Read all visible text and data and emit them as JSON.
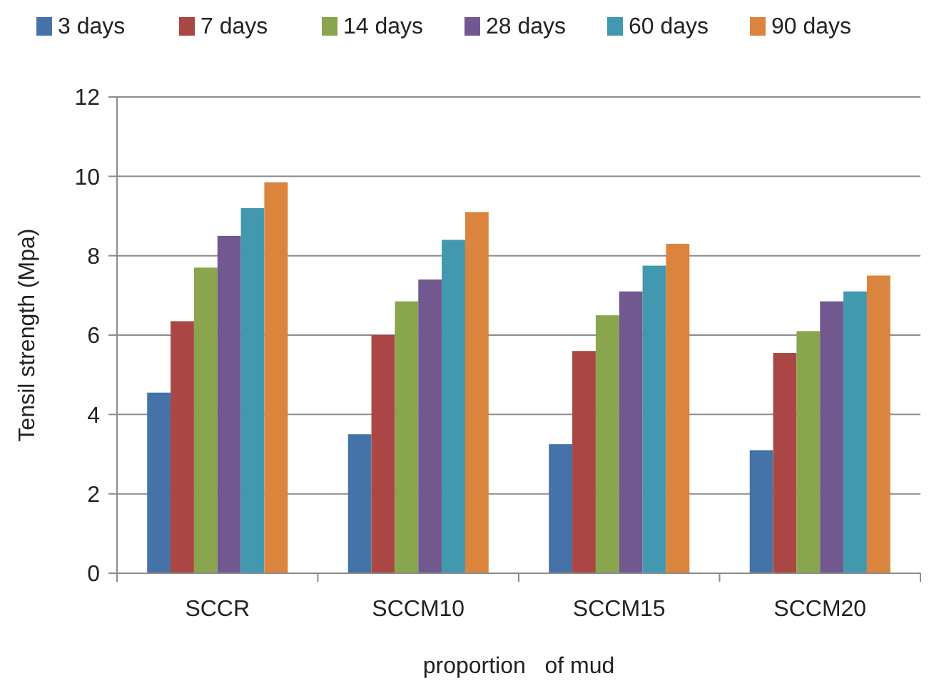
{
  "chart_data": {
    "type": "bar",
    "xlabel": "proportion   of mud",
    "ylabel": "Tensil strength (Mpa)",
    "categories": [
      "SCCR",
      "SCCM10",
      "SCCM15",
      "SCCM20"
    ],
    "series": [
      {
        "name": "3 days",
        "color": "#4572a7",
        "values": [
          4.55,
          3.5,
          3.25,
          3.1
        ]
      },
      {
        "name": "7 days",
        "color": "#aa4643",
        "values": [
          6.35,
          6.0,
          5.6,
          5.55
        ]
      },
      {
        "name": "14 days",
        "color": "#89a54e",
        "values": [
          7.7,
          6.85,
          6.5,
          6.1
        ]
      },
      {
        "name": "28 days",
        "color": "#71588f",
        "values": [
          8.5,
          7.4,
          7.1,
          6.85
        ]
      },
      {
        "name": "60 days",
        "color": "#4198af",
        "values": [
          9.2,
          8.4,
          7.75,
          7.1
        ]
      },
      {
        "name": "90 days",
        "color": "#db843d",
        "values": [
          9.85,
          9.1,
          8.3,
          7.5
        ]
      }
    ],
    "ylim": [
      0,
      12
    ],
    "yticks": [
      0,
      2,
      4,
      6,
      8,
      10,
      12
    ],
    "grid": "y",
    "legend": "top"
  }
}
